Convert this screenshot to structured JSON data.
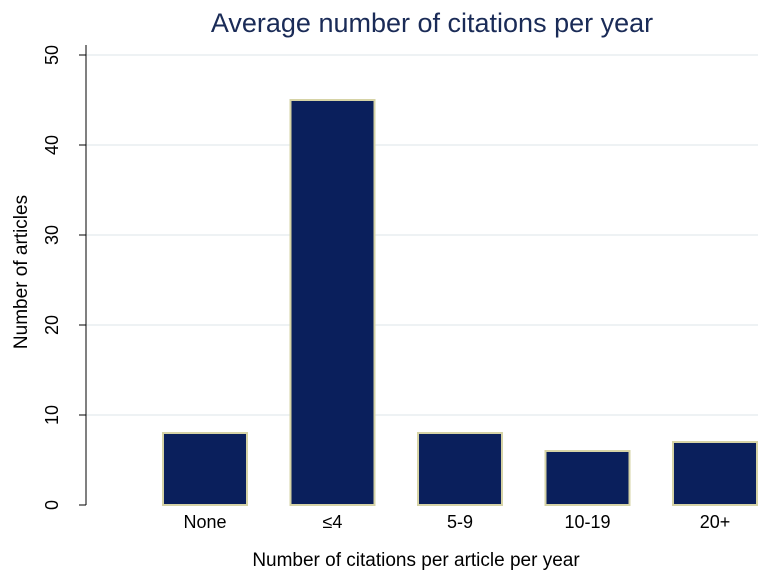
{
  "chart_data": {
    "type": "bar",
    "title": "Average number of citations per year",
    "xlabel": "Number of citations per article per year",
    "ylabel": "Number of articles",
    "categories": [
      "None",
      "≤4",
      "5-9",
      "10-19",
      "20+"
    ],
    "values": [
      8,
      45,
      8,
      6,
      7
    ],
    "ylim": [
      0,
      50
    ],
    "yticks": [
      0,
      10,
      20,
      30,
      40,
      50
    ],
    "grid": true,
    "colors": {
      "bar_fill": "#0a1f5c",
      "bar_outline": "#d6d3a6",
      "title": "#1a2b57",
      "grid": "#e8eef1"
    }
  }
}
